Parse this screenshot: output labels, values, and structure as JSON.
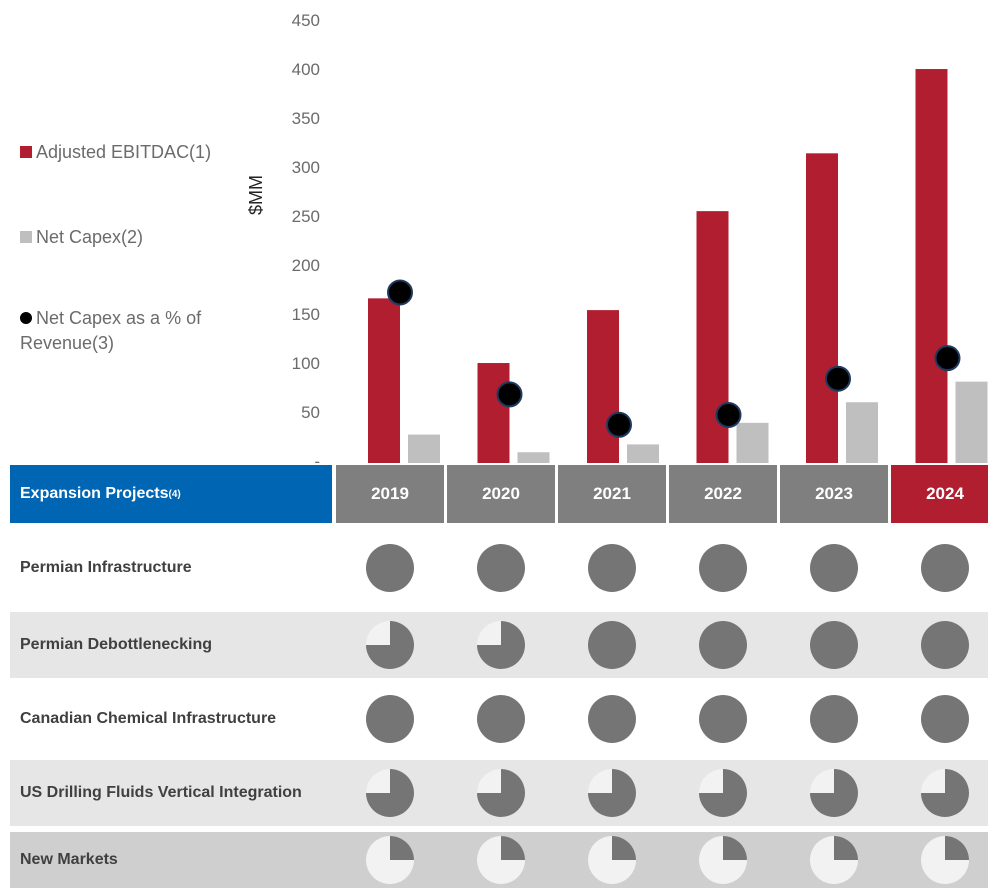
{
  "chart_data": {
    "type": "bar",
    "categories": [
      "2019",
      "2020",
      "2021",
      "2022",
      "2023",
      "2024"
    ],
    "ylabel": "$MM",
    "ylim": [
      0,
      450
    ],
    "yticks": [
      "-",
      "50",
      "100",
      "150",
      "200",
      "250",
      "300",
      "350",
      "400",
      "450"
    ],
    "series": [
      {
        "name": "Adjusted EBITDAC(1)",
        "kind": "bar",
        "color": "#b01e2f",
        "values": [
          168,
          102,
          156,
          257,
          316,
          402
        ]
      },
      {
        "name": "Net Capex(2)",
        "kind": "bar",
        "color": "#bfbfbf",
        "values": [
          29,
          11,
          19,
          41,
          62,
          83
        ]
      },
      {
        "name": "Net Capex as a % of Revenue(3)",
        "kind": "marker",
        "color": "#000000",
        "values": [
          174,
          70,
          39,
          49,
          86,
          107
        ]
      }
    ],
    "legend": [
      "Adjusted EBITDAC(1)",
      "Net Capex(2)",
      "Net Capex as a % of Revenue(3)"
    ]
  },
  "legend_lines": {
    "ebitdac": "Adjusted EBITDAC(1)",
    "capex": "Net Capex(2)",
    "pct_line1": "Net Capex as a % of",
    "pct_line2": "Revenue(3)"
  },
  "table": {
    "title": "Expansion Projects",
    "title_sup": "(4)",
    "years": [
      "2019",
      "2020",
      "2021",
      "2022",
      "2023",
      "2024"
    ],
    "highlight_year": "2024",
    "rows": [
      {
        "label": "Permian Infrastructure",
        "fills": [
          1,
          1,
          1,
          1,
          1,
          1
        ],
        "bg": "#ffffff"
      },
      {
        "label": "Permian Debottlenecking",
        "fills": [
          0.75,
          0.75,
          1,
          1,
          1,
          1
        ],
        "bg": "#e6e6e6"
      },
      {
        "label": "Canadian Chemical Infrastructure",
        "fills": [
          1,
          1,
          1,
          1,
          1,
          1
        ],
        "bg": "#ffffff"
      },
      {
        "label": "US Drilling Fluids Vertical Integration",
        "fills": [
          0.75,
          0.75,
          0.75,
          0.75,
          0.75,
          0.75
        ],
        "bg": "#e6e6e6"
      },
      {
        "label": "New Markets",
        "fills": [
          0.25,
          0.25,
          0.25,
          0.25,
          0.25,
          0.25
        ],
        "bg": "#cfcfcf"
      }
    ],
    "pie_fill_color": "#757575",
    "pie_empty_color": "#f2f2f2"
  }
}
